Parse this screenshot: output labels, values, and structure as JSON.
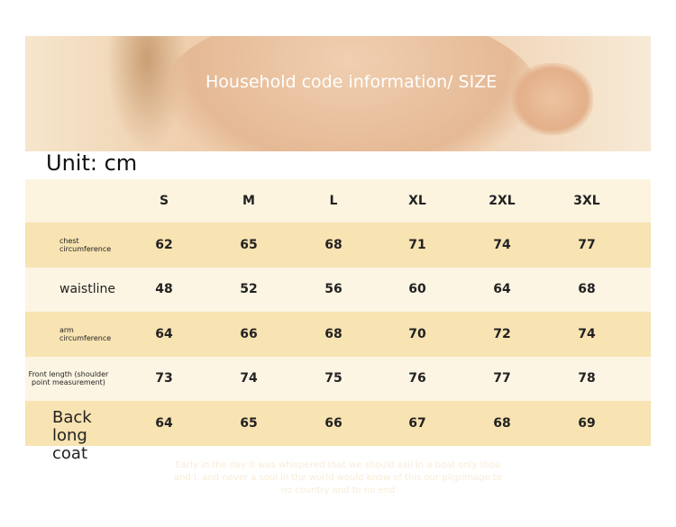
{
  "banner": {
    "title": "Household code information/ SIZE"
  },
  "unit": "Unit: cm",
  "table": {
    "sizes": [
      "S",
      "M",
      "L",
      "XL",
      "2XL",
      "3XL"
    ],
    "rows": [
      {
        "label": "chest circumference",
        "values": [
          "62",
          "65",
          "68",
          "71",
          "74",
          "77"
        ]
      },
      {
        "label": "waistline",
        "values": [
          "48",
          "52",
          "56",
          "60",
          "64",
          "68"
        ]
      },
      {
        "label": "arm circumference",
        "values": [
          "64",
          "66",
          "68",
          "70",
          "72",
          "74"
        ]
      },
      {
        "label": "Front length (shoulder point measurement)",
        "values": [
          "73",
          "74",
          "75",
          "76",
          "77",
          "78"
        ]
      },
      {
        "label": "Back long coat",
        "values": [
          "64",
          "65",
          "66",
          "67",
          "68",
          "69"
        ]
      }
    ]
  },
  "poem": "Early in the day it was whispered that we should sail in a boat only thou and I, and never a soul in the world would know of this our pilgrimage to no country and to no end"
}
